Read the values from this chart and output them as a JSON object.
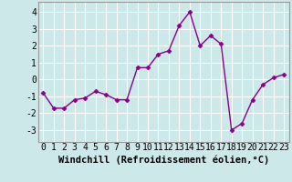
{
  "x": [
    0,
    1,
    2,
    3,
    4,
    5,
    6,
    7,
    8,
    9,
    10,
    11,
    12,
    13,
    14,
    15,
    16,
    17,
    18,
    19,
    20,
    21,
    22,
    23
  ],
  "y": [
    -0.8,
    -1.7,
    -1.7,
    -1.2,
    -1.1,
    -0.7,
    -0.9,
    -1.2,
    -1.2,
    0.7,
    0.7,
    1.5,
    1.7,
    3.2,
    4.0,
    2.0,
    2.6,
    2.1,
    -3.0,
    -2.6,
    -1.2,
    -0.3,
    0.1,
    0.3
  ],
  "line_color": "#880088",
  "marker": "D",
  "markersize": 2.5,
  "linewidth": 1.0,
  "xlabel": "Windchill (Refroidissement éolien,°C)",
  "xlabel_fontsize": 7.5,
  "ylabel_ticks": [
    -3,
    -2,
    -1,
    0,
    1,
    2,
    3,
    4
  ],
  "xtick_labels": [
    "0",
    "1",
    "2",
    "3",
    "4",
    "5",
    "6",
    "7",
    "8",
    "9",
    "10",
    "11",
    "12",
    "13",
    "14",
    "15",
    "16",
    "17",
    "18",
    "19",
    "20",
    "21",
    "22",
    "23"
  ],
  "ylim": [
    -3.7,
    4.6
  ],
  "xlim": [
    -0.5,
    23.5
  ],
  "bg_color": "#cce8e8",
  "grid_color": "#bbdddd",
  "tick_fontsize": 7,
  "spine_color": "#999999"
}
